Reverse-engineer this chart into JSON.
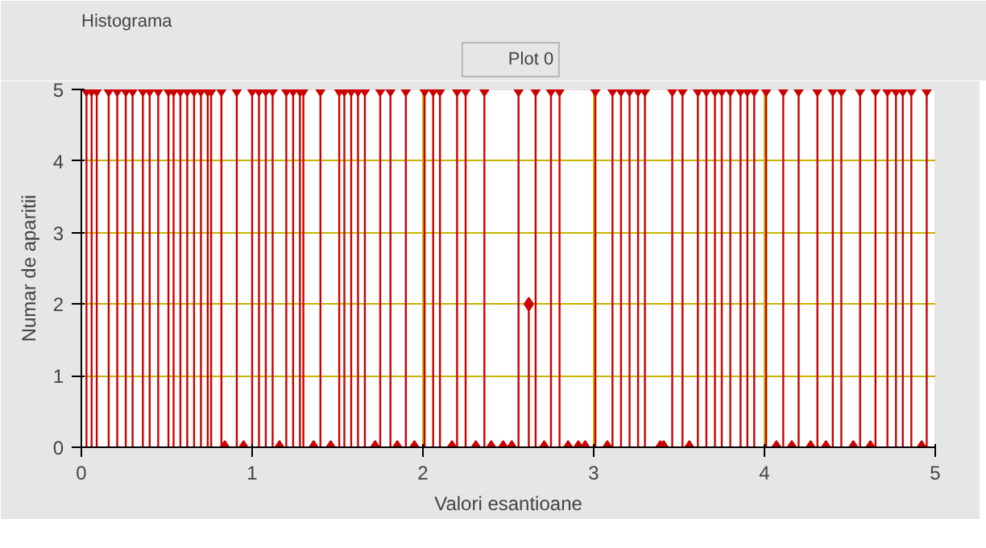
{
  "chart_data": {
    "type": "lollipop",
    "title": "Histograma",
    "xlabel": "Valori esantioane",
    "ylabel": "Numar de aparitii",
    "xlim": [
      0,
      5
    ],
    "ylim": [
      0,
      5
    ],
    "xticks": [
      0,
      1,
      2,
      3,
      4,
      5
    ],
    "yticks": [
      0,
      1,
      2,
      3,
      4,
      5
    ],
    "grid": true,
    "legend": "top",
    "marker": "diamond",
    "series": [
      {
        "name": "Plot 0",
        "color": "#cc0000",
        "x": [
          0.03,
          0.06,
          0.09,
          0.16,
          0.21,
          0.26,
          0.3,
          0.36,
          0.4,
          0.45,
          0.51,
          0.54,
          0.58,
          0.62,
          0.66,
          0.7,
          0.74,
          0.76,
          0.82,
          0.91,
          1.0,
          1.04,
          1.08,
          1.12,
          1.2,
          1.24,
          1.28,
          1.3,
          1.4,
          1.51,
          1.54,
          1.58,
          1.62,
          1.66,
          1.75,
          1.81,
          1.9,
          2.01,
          2.06,
          2.1,
          2.2,
          2.25,
          2.36,
          2.56,
          2.66,
          2.75,
          2.8,
          3.01,
          3.11,
          3.16,
          3.21,
          3.26,
          3.3,
          3.46,
          3.52,
          3.61,
          3.66,
          3.71,
          3.75,
          3.8,
          3.86,
          3.9,
          3.94,
          4.01,
          4.11,
          4.2,
          4.31,
          4.4,
          4.45,
          4.56,
          4.65,
          4.72,
          4.77,
          4.81,
          4.86,
          4.95,
          0.84,
          0.95,
          1.16,
          1.36,
          1.46,
          1.72,
          1.85,
          1.95,
          2.17,
          2.31,
          2.4,
          2.47,
          2.52,
          2.71,
          2.85,
          2.91,
          2.95,
          3.08,
          3.39,
          3.41,
          3.56,
          4.07,
          4.16,
          4.27,
          4.36,
          4.52,
          4.62,
          4.92,
          2.62
        ],
        "values": [
          5,
          5,
          5,
          5,
          5,
          5,
          5,
          5,
          5,
          5,
          5,
          5,
          5,
          5,
          5,
          5,
          5,
          5,
          5,
          5,
          5,
          5,
          5,
          5,
          5,
          5,
          5,
          5,
          5,
          5,
          5,
          5,
          5,
          5,
          5,
          5,
          5,
          5,
          5,
          5,
          5,
          5,
          5,
          5,
          5,
          5,
          5,
          5,
          5,
          5,
          5,
          5,
          5,
          5,
          5,
          5,
          5,
          5,
          5,
          5,
          5,
          5,
          5,
          5,
          5,
          5,
          5,
          5,
          5,
          5,
          5,
          5,
          5,
          5,
          5,
          5,
          0,
          0,
          0,
          0,
          0,
          0,
          0,
          0,
          0,
          0,
          0,
          0,
          0,
          0,
          0,
          0,
          0,
          0,
          0,
          0,
          0,
          0,
          0,
          0,
          0,
          0,
          0,
          0,
          2
        ]
      }
    ]
  }
}
